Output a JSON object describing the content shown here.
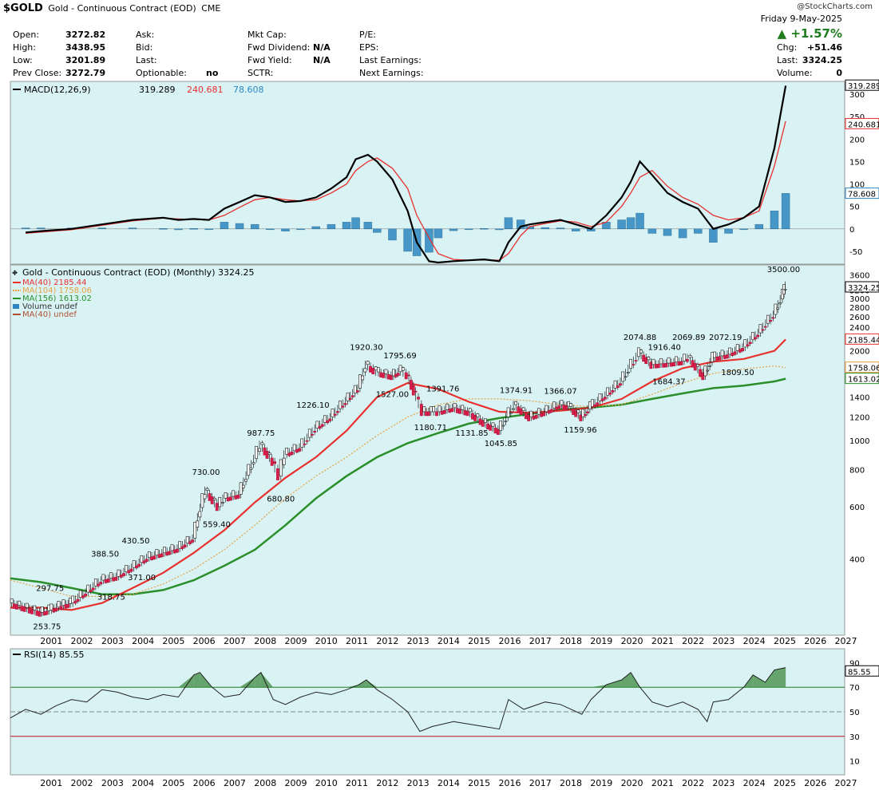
{
  "header": {
    "ticker": "$GOLD",
    "name": "Gold - Continuous Contract (EOD)",
    "exchange": "CME",
    "watermark": "@StockCharts.com",
    "date": "Friday  9-May-2025",
    "pct_change": "+1.57%",
    "quote": [
      {
        "label": "Open:",
        "value": "3272.82"
      },
      {
        "label": "High:",
        "value": "3438.95"
      },
      {
        "label": "Low:",
        "value": "3201.89"
      },
      {
        "label": "Prev Close:",
        "value": "3272.79"
      }
    ],
    "col2": [
      {
        "label": "Ask:",
        "value": ""
      },
      {
        "label": "Bid:",
        "value": ""
      },
      {
        "label": "Last:",
        "value": ""
      },
      {
        "label": "Optionable:",
        "value": "no"
      }
    ],
    "col3": [
      {
        "label": "Mkt Cap:",
        "value": ""
      },
      {
        "label": "Fwd Dividend:",
        "value": "N/A"
      },
      {
        "label": "Fwd Yield:",
        "value": "N/A"
      },
      {
        "label": "SCTR:",
        "value": ""
      }
    ],
    "col4": [
      {
        "label": "P/E:"
      },
      {
        "label": "EPS:"
      },
      {
        "label": "Last Earnings:"
      },
      {
        "label": "Next Earnings:"
      }
    ],
    "right": [
      {
        "label": "Chg:",
        "value": "+51.46"
      },
      {
        "label": "Last:",
        "value": "3324.25"
      },
      {
        "label": "Volume:",
        "value": "0"
      }
    ]
  },
  "chart_data": [
    {
      "type": "line",
      "title": "MACD(12,26,9)",
      "legend_values": [
        "319.289",
        "240.681",
        "78.608"
      ],
      "colors": {
        "macd": "#000000",
        "signal": "#e8302c",
        "hist": "#2e86c1"
      },
      "ylim": [
        -75,
        325
      ],
      "y_ticks": [
        -50,
        0,
        50,
        100,
        150,
        200,
        250,
        300
      ],
      "right_labels": [
        "319.289",
        "240.681",
        "78.608"
      ],
      "x": [
        2000.5,
        2001,
        2002,
        2003,
        2004,
        2005,
        2005.5,
        2006,
        2006.5,
        2007,
        2007.5,
        2008,
        2008.5,
        2009,
        2009.5,
        2010,
        2010.5,
        2011,
        2011.3,
        2011.7,
        2012,
        2012.5,
        2013,
        2013.3,
        2013.7,
        2014,
        2014.5,
        2015,
        2015.5,
        2016,
        2016.3,
        2016.7,
        2017,
        2017.5,
        2018,
        2018.5,
        2019,
        2019.5,
        2020,
        2020.3,
        2020.6,
        2021,
        2021.5,
        2022,
        2022.5,
        2023,
        2023.5,
        2024,
        2024.5,
        2025,
        2025.37
      ],
      "series": [
        {
          "name": "MACD",
          "values": [
            -8,
            -5,
            0,
            10,
            20,
            25,
            20,
            22,
            20,
            45,
            60,
            75,
            70,
            60,
            62,
            70,
            90,
            115,
            155,
            165,
            150,
            110,
            40,
            -30,
            -72,
            -75,
            -72,
            -70,
            -68,
            -72,
            -30,
            5,
            10,
            15,
            20,
            10,
            0,
            30,
            70,
            105,
            150,
            120,
            80,
            60,
            45,
            0,
            10,
            25,
            50,
            180,
            319
          ]
        },
        {
          "name": "MACD Signal",
          "values": [
            -10,
            -7,
            -2,
            8,
            18,
            24,
            22,
            21,
            20,
            30,
            48,
            65,
            70,
            65,
            62,
            65,
            80,
            100,
            130,
            150,
            158,
            135,
            90,
            30,
            -20,
            -55,
            -68,
            -70,
            -69,
            -70,
            -55,
            -15,
            5,
            12,
            18,
            15,
            5,
            15,
            50,
            80,
            115,
            130,
            95,
            70,
            55,
            30,
            20,
            25,
            40,
            140,
            240
          ]
        },
        {
          "name": "Histogram",
          "values": [
            2,
            2,
            2,
            2,
            2,
            1,
            -2,
            1,
            0,
            15,
            12,
            10,
            0,
            -5,
            0,
            5,
            10,
            15,
            25,
            15,
            -8,
            -25,
            -50,
            -60,
            -52,
            -20,
            -4,
            0,
            1,
            -2,
            25,
            20,
            5,
            3,
            2,
            -5,
            -5,
            15,
            20,
            25,
            35,
            -10,
            -15,
            -20,
            -10,
            -30,
            -10,
            0,
            10,
            40,
            79
          ]
        }
      ]
    },
    {
      "type": "line",
      "title": "Gold - Continuous Contract (EOD) (Monthly) 3324.25",
      "log_scale": true,
      "ylim": [
        225,
        3700
      ],
      "y_ticks": [
        400,
        600,
        800,
        1000,
        1200,
        1400,
        1600,
        1800,
        2000,
        2200,
        2400,
        2600,
        2800,
        3000,
        3200,
        3600
      ],
      "right_labels": [
        {
          "text": "3324.25",
          "value": 3324.25,
          "fill": "#ffffff",
          "stroke": "#000000"
        },
        {
          "text": "2185.44",
          "value": 2185.44,
          "fill": "#ffffff",
          "stroke": "#e8302c"
        },
        {
          "text": "1758.06",
          "value": 1758.06,
          "fill": "#ffffff",
          "stroke": "#e8a040"
        },
        {
          "text": "1613.02",
          "value": 1613.02,
          "fill": "#ffffff",
          "stroke": "#2a8f2a"
        }
      ],
      "legend": [
        {
          "text": "MA(40) 2185.44",
          "color": "#e8302c",
          "dash": "solid"
        },
        {
          "text": "MA(104) 1758.06",
          "color": "#e8a040",
          "dash": "dot"
        },
        {
          "text": "MA(156) 1613.02",
          "color": "#2a8f2a",
          "dash": "solid"
        },
        {
          "text": "Volume undef",
          "color": "#2e86c1",
          "dash": "box"
        },
        {
          "text": "MA(40) undef",
          "color": "#b05030",
          "dash": "solid"
        }
      ],
      "x_ticks": [
        "2001",
        "2002",
        "2003",
        "2004",
        "2005",
        "2006",
        "2007",
        "2008",
        "2009",
        "2010",
        "2011",
        "2012",
        "2013",
        "2014",
        "2015",
        "2016",
        "2017",
        "2018",
        "2019",
        "2020",
        "2021",
        "2022",
        "2023",
        "2024",
        "2025",
        "2026",
        "2027"
      ],
      "x": [
        2000.0,
        2000.5,
        2001.0,
        2001.3,
        2001.7,
        2002.0,
        2002.5,
        2003.0,
        2003.5,
        2004.0,
        2004.5,
        2005.0,
        2005.5,
        2006.0,
        2006.4,
        2006.8,
        2007.0,
        2007.5,
        2008.0,
        2008.2,
        2008.6,
        2008.8,
        2009.0,
        2009.5,
        2010.0,
        2010.5,
        2011.0,
        2011.4,
        2011.65,
        2012.0,
        2012.5,
        2012.8,
        2013.0,
        2013.3,
        2013.5,
        2013.8,
        2014.0,
        2014.5,
        2015.0,
        2015.5,
        2016.0,
        2016.5,
        2017.0,
        2017.5,
        2018.0,
        2018.3,
        2018.7,
        2019.0,
        2019.5,
        2020.0,
        2020.6,
        2021.0,
        2021.5,
        2022.0,
        2022.2,
        2022.7,
        2023.0,
        2023.5,
        2024.0,
        2024.5,
        2025.0,
        2025.3,
        2025.37
      ],
      "values": [
        285,
        275,
        265,
        270,
        280,
        285,
        310,
        340,
        350,
        375,
        405,
        420,
        435,
        470,
        680,
        600,
        640,
        660,
        870,
        970,
        850,
        760,
        900,
        950,
        1100,
        1200,
        1360,
        1500,
        1800,
        1700,
        1650,
        1720,
        1660,
        1400,
        1250,
        1250,
        1250,
        1290,
        1250,
        1150,
        1080,
        1320,
        1200,
        1250,
        1320,
        1300,
        1200,
        1300,
        1420,
        1580,
        1970,
        1800,
        1820,
        1850,
        1900,
        1650,
        1900,
        1950,
        2060,
        2300,
        2650,
        3100,
        3324.25
      ],
      "ma40_x": [
        2000.0,
        2001,
        2002,
        2003,
        2004,
        2005,
        2006,
        2007,
        2008,
        2009,
        2010,
        2011,
        2012,
        2013,
        2014,
        2015,
        2016,
        2017,
        2018,
        2019,
        2020,
        2021,
        2022,
        2023,
        2024,
        2025,
        2025.37
      ],
      "ma40": [
        275,
        275,
        270,
        285,
        320,
        360,
        420,
        500,
        620,
        750,
        880,
        1080,
        1400,
        1560,
        1490,
        1350,
        1250,
        1240,
        1260,
        1290,
        1380,
        1580,
        1750,
        1840,
        1880,
        2000,
        2185.44
      ],
      "ma104_x": [
        2000.0,
        2001,
        2002,
        2003,
        2004,
        2005,
        2006,
        2007,
        2008,
        2009,
        2010,
        2011,
        2012,
        2013,
        2014,
        2015,
        2016,
        2017,
        2018,
        2019,
        2020,
        2021,
        2022,
        2023,
        2024,
        2025,
        2025.37
      ],
      "ma104": [
        340,
        320,
        300,
        300,
        305,
        330,
        370,
        430,
        520,
        640,
        760,
        880,
        1040,
        1200,
        1320,
        1380,
        1380,
        1360,
        1320,
        1300,
        1320,
        1430,
        1560,
        1680,
        1740,
        1780,
        1758.06
      ],
      "ma156_x": [
        2000.0,
        2001,
        2002,
        2003,
        2004,
        2005,
        2006,
        2007,
        2008,
        2009,
        2010,
        2011,
        2012,
        2013,
        2014,
        2015,
        2016,
        2017,
        2018,
        2019,
        2020,
        2021,
        2022,
        2023,
        2024,
        2025,
        2025.37
      ],
      "ma156": [
        345,
        335,
        320,
        305,
        305,
        315,
        340,
        380,
        430,
        520,
        640,
        760,
        880,
        980,
        1060,
        1140,
        1190,
        1230,
        1270,
        1290,
        1320,
        1380,
        1440,
        1500,
        1530,
        1580,
        1613.02
      ],
      "annotations": [
        {
          "text": "253.75",
          "x": 2001.2,
          "value": 253.75,
          "pos": "below"
        },
        {
          "text": "297.75",
          "x": 2001.3,
          "value": 297.75,
          "pos": "above"
        },
        {
          "text": "318.75",
          "x": 2003.3,
          "value": 318.75,
          "pos": "below"
        },
        {
          "text": "388.50",
          "x": 2003.1,
          "value": 388.5,
          "pos": "above"
        },
        {
          "text": "371.00",
          "x": 2004.3,
          "value": 371,
          "pos": "below"
        },
        {
          "text": "430.50",
          "x": 2004.1,
          "value": 430.5,
          "pos": "above"
        },
        {
          "text": "730.00",
          "x": 2006.4,
          "value": 730,
          "pos": "above"
        },
        {
          "text": "559.40",
          "x": 2006.75,
          "value": 559.4,
          "pos": "below"
        },
        {
          "text": "987.75",
          "x": 2008.2,
          "value": 987.75,
          "pos": "above"
        },
        {
          "text": "680.80",
          "x": 2008.85,
          "value": 680.8,
          "pos": "below"
        },
        {
          "text": "1226.10",
          "x": 2009.9,
          "value": 1226.1,
          "pos": "above"
        },
        {
          "text": "1920.30",
          "x": 2011.65,
          "value": 1920.3,
          "pos": "above"
        },
        {
          "text": "1795.69",
          "x": 2012.75,
          "value": 1795.69,
          "pos": "above"
        },
        {
          "text": "1527.00",
          "x": 2012.5,
          "value": 1527,
          "pos": "below"
        },
        {
          "text": "1391.76",
          "x": 2014.15,
          "value": 1391.76,
          "pos": "above"
        },
        {
          "text": "1180.71",
          "x": 2013.75,
          "value": 1180.71,
          "pos": "below"
        },
        {
          "text": "1131.85",
          "x": 2015.1,
          "value": 1131.85,
          "pos": "below"
        },
        {
          "text": "1374.91",
          "x": 2016.55,
          "value": 1374.91,
          "pos": "above"
        },
        {
          "text": "1366.07",
          "x": 2018.0,
          "value": 1366.07,
          "pos": "above"
        },
        {
          "text": "1045.85",
          "x": 2016.05,
          "value": 1045.85,
          "pos": "below"
        },
        {
          "text": "1159.96",
          "x": 2018.65,
          "value": 1159.96,
          "pos": "below"
        },
        {
          "text": "2074.88",
          "x": 2020.6,
          "value": 2074.88,
          "pos": "above"
        },
        {
          "text": "1916.40",
          "x": 2021.4,
          "value": 1916.4,
          "pos": "above"
        },
        {
          "text": "2069.89",
          "x": 2022.2,
          "value": 2069.89,
          "pos": "above"
        },
        {
          "text": "2072.19",
          "x": 2023.4,
          "value": 2072.19,
          "pos": "above"
        },
        {
          "text": "1684.37",
          "x": 2021.55,
          "value": 1684.37,
          "pos": "below"
        },
        {
          "text": "1809.50",
          "x": 2023.8,
          "value": 1809.5,
          "pos": "below"
        },
        {
          "text": "3500.00",
          "x": 2025.3,
          "value": 3500,
          "pos": "above"
        }
      ]
    },
    {
      "type": "line",
      "title": "RSI(14) 85.55",
      "ylim": [
        0,
        100
      ],
      "y_ticks": [
        10,
        30,
        50,
        70,
        90
      ],
      "overbought": 70,
      "oversold": 30,
      "right_label": "85.55",
      "x": [
        2000.0,
        2000.5,
        2001.0,
        2001.5,
        2002.0,
        2002.5,
        2003.0,
        2003.5,
        2004.0,
        2004.5,
        2005.0,
        2005.5,
        2006.0,
        2006.2,
        2006.6,
        2007.0,
        2007.5,
        2008.0,
        2008.2,
        2008.6,
        2009.0,
        2009.5,
        2010.0,
        2010.5,
        2011.0,
        2011.4,
        2011.65,
        2012.0,
        2012.5,
        2013.0,
        2013.4,
        2013.8,
        2014.5,
        2015.0,
        2015.5,
        2016.0,
        2016.3,
        2016.8,
        2017.5,
        2018.0,
        2018.7,
        2019.0,
        2019.5,
        2020.0,
        2020.3,
        2020.6,
        2021.0,
        2021.5,
        2022.0,
        2022.5,
        2022.8,
        2023.0,
        2023.5,
        2024.0,
        2024.3,
        2024.7,
        2025.0,
        2025.37
      ],
      "values": [
        45,
        52,
        48,
        55,
        60,
        58,
        68,
        66,
        62,
        60,
        64,
        62,
        80,
        82,
        70,
        62,
        64,
        78,
        82,
        60,
        56,
        62,
        66,
        64,
        68,
        72,
        76,
        68,
        60,
        50,
        34,
        38,
        42,
        40,
        38,
        36,
        60,
        52,
        58,
        56,
        48,
        60,
        72,
        76,
        82,
        70,
        58,
        54,
        58,
        52,
        42,
        58,
        60,
        70,
        80,
        74,
        84,
        86
      ]
    }
  ]
}
